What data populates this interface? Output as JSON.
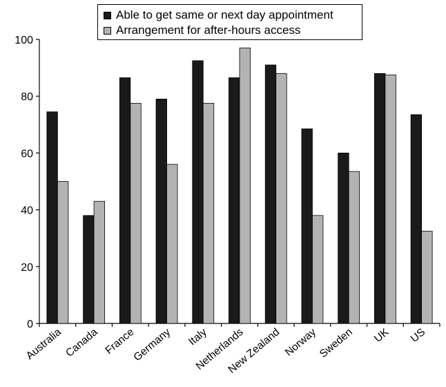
{
  "chart_data": {
    "type": "bar",
    "categories": [
      "Australia",
      "Canada",
      "France",
      "Germany",
      "Italy",
      "Netherlands",
      "New Zealand",
      "Norway",
      "Sweden",
      "UK",
      "US"
    ],
    "series": [
      {
        "name": "Able to get same or next day appointment",
        "color": "#1a1a1a",
        "values": [
          74.5,
          38,
          86.5,
          79,
          92.5,
          86.5,
          91,
          68.5,
          60,
          88,
          73.5
        ]
      },
      {
        "name": "Arrangement for after-hours access",
        "color": "#b3b3b3",
        "values": [
          50,
          43,
          77.5,
          56,
          77.5,
          97,
          88,
          38,
          53.5,
          87.5,
          32.5
        ]
      }
    ],
    "ylim": [
      0,
      100
    ],
    "yticks": [
      0,
      20,
      40,
      60,
      80,
      100
    ],
    "xlabel": "",
    "ylabel": "",
    "legend": "top-center",
    "grid": false
  }
}
